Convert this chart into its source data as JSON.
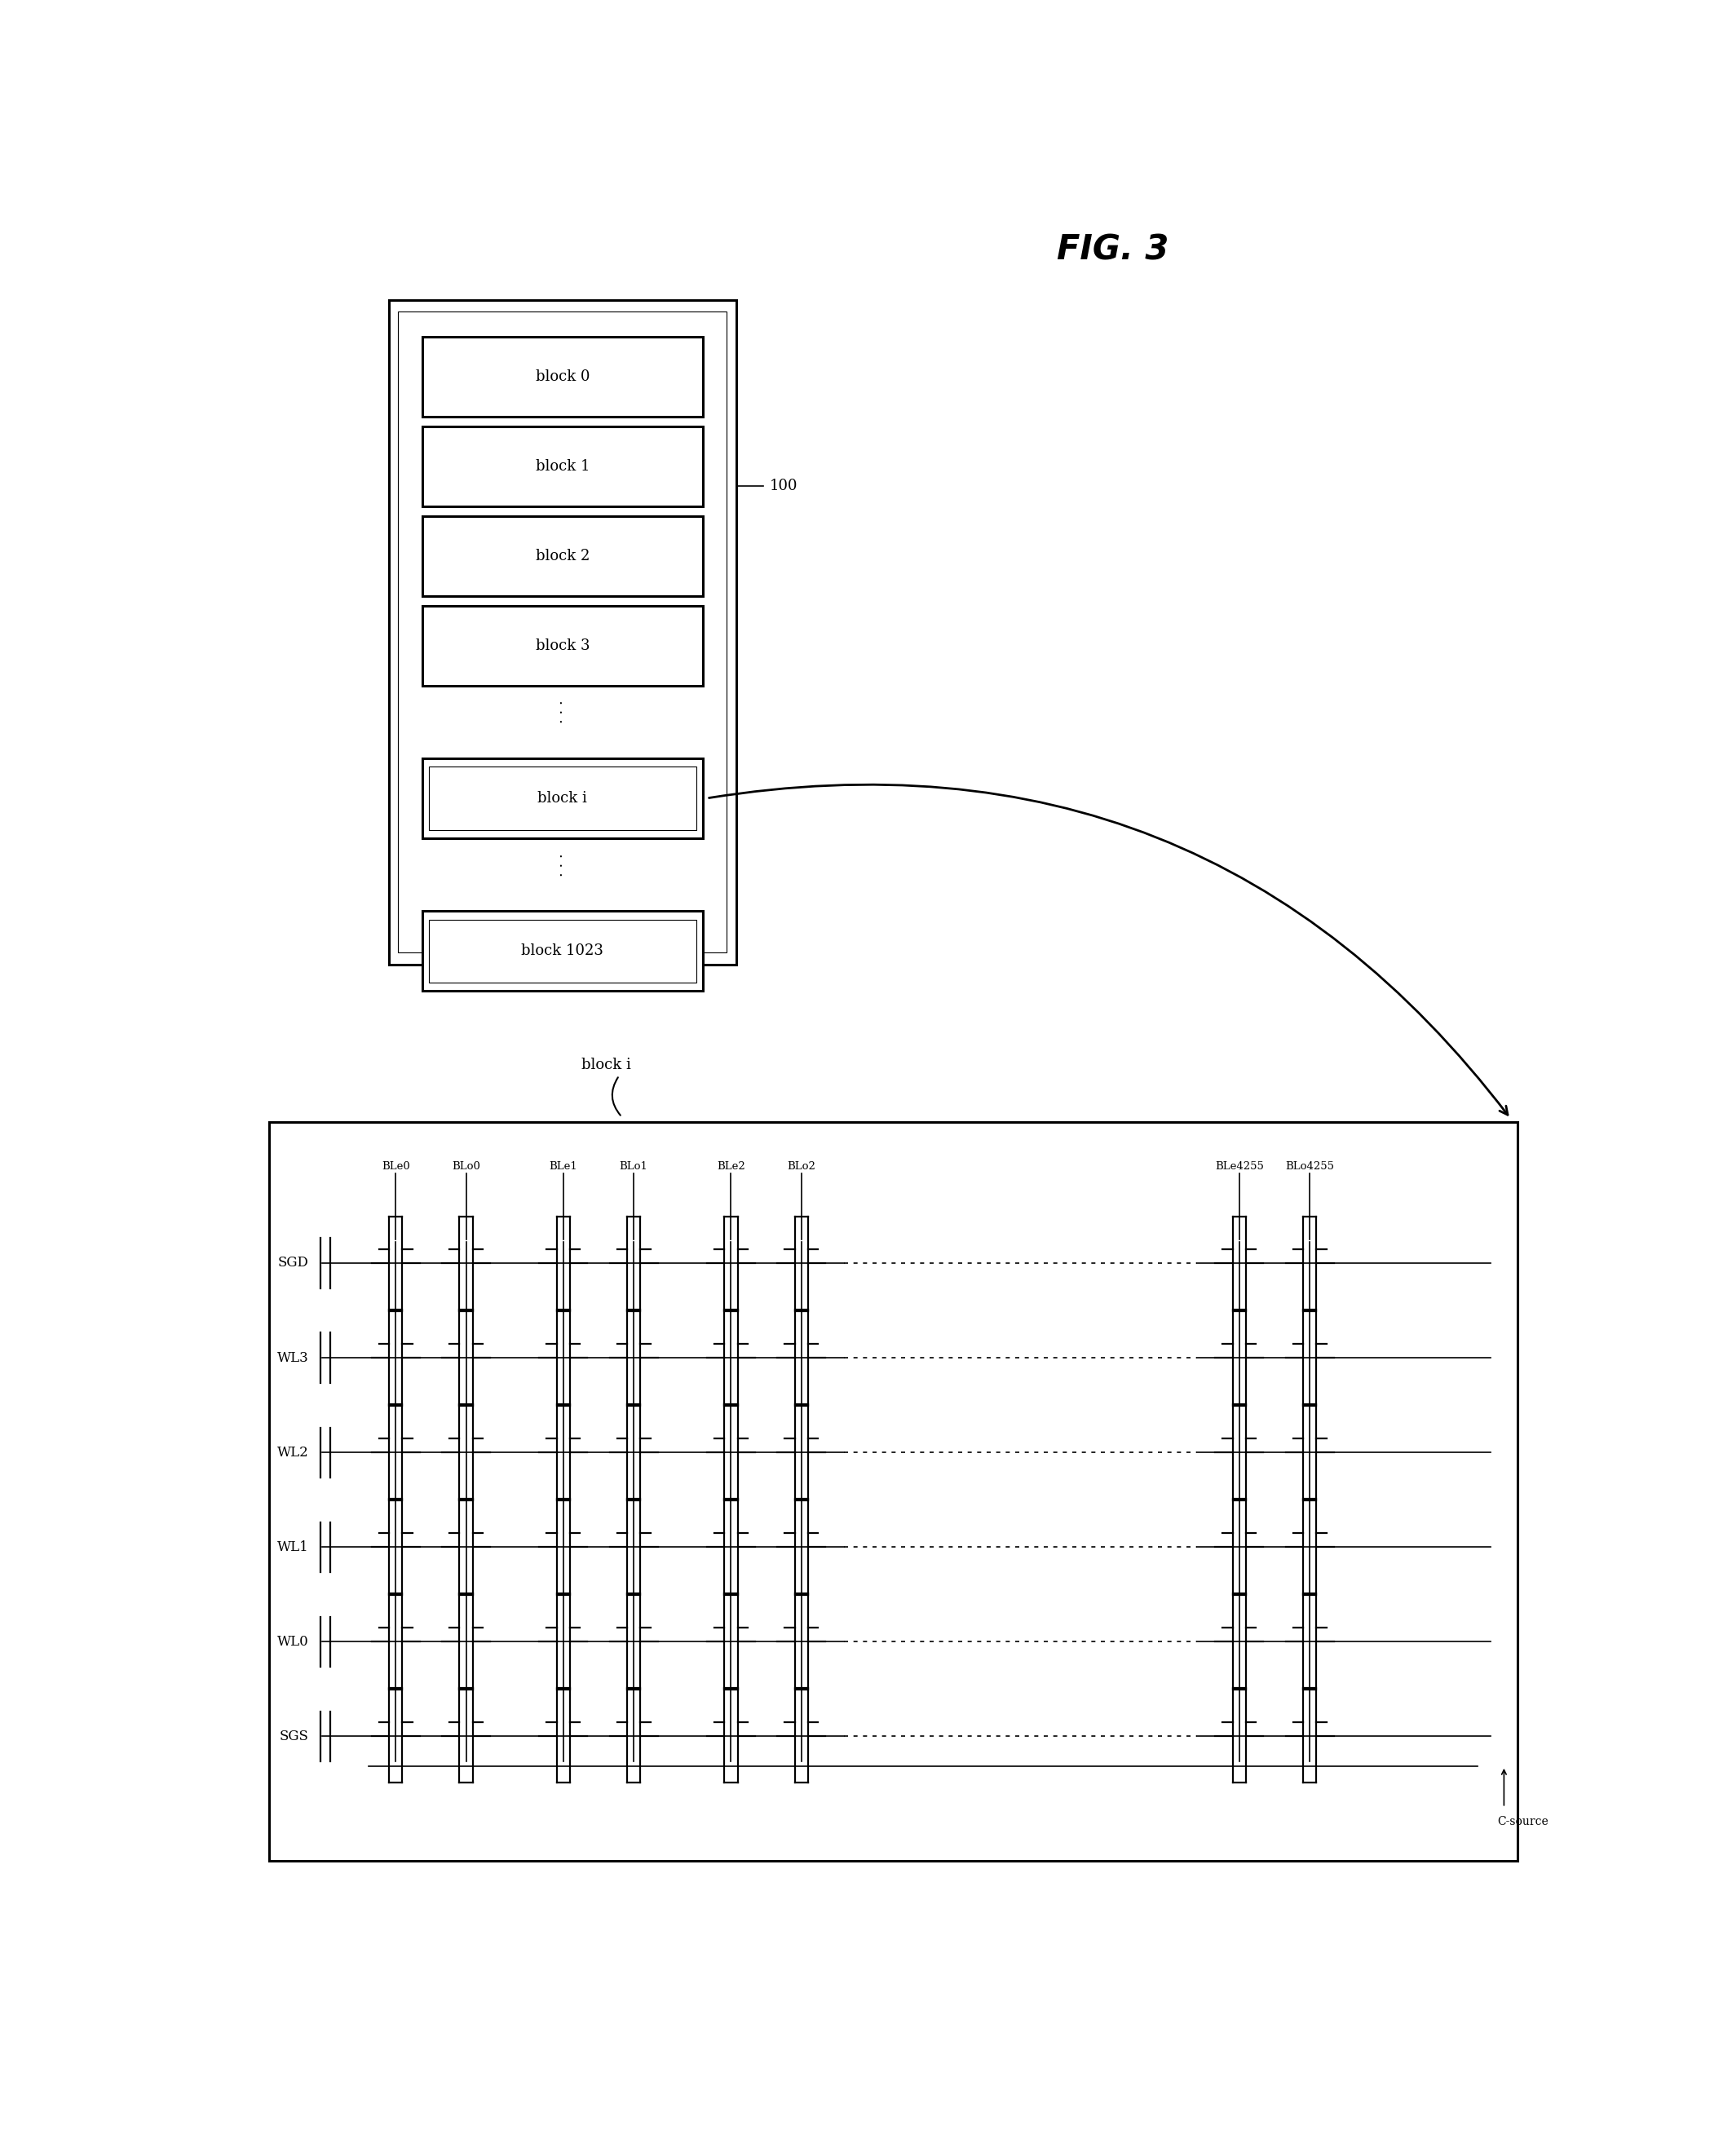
{
  "title": "FIG. 3",
  "fig_width": 21.13,
  "fig_height": 26.44,
  "bg_color": "#ffffff",
  "row_labels": [
    "SGD",
    "WL3",
    "WL2",
    "WL1",
    "WL0",
    "SGS"
  ],
  "col_labels": [
    "BLe0",
    "BLo0",
    "BLe1",
    "BLo1",
    "BLe2",
    "BLo2",
    "BLe4255",
    "BLo4255"
  ],
  "block_labels": [
    "block 0",
    "block 1",
    "block 2",
    "block 3",
    "block i",
    "block 1023"
  ],
  "csource_label": "C-source",
  "label_100": "100"
}
